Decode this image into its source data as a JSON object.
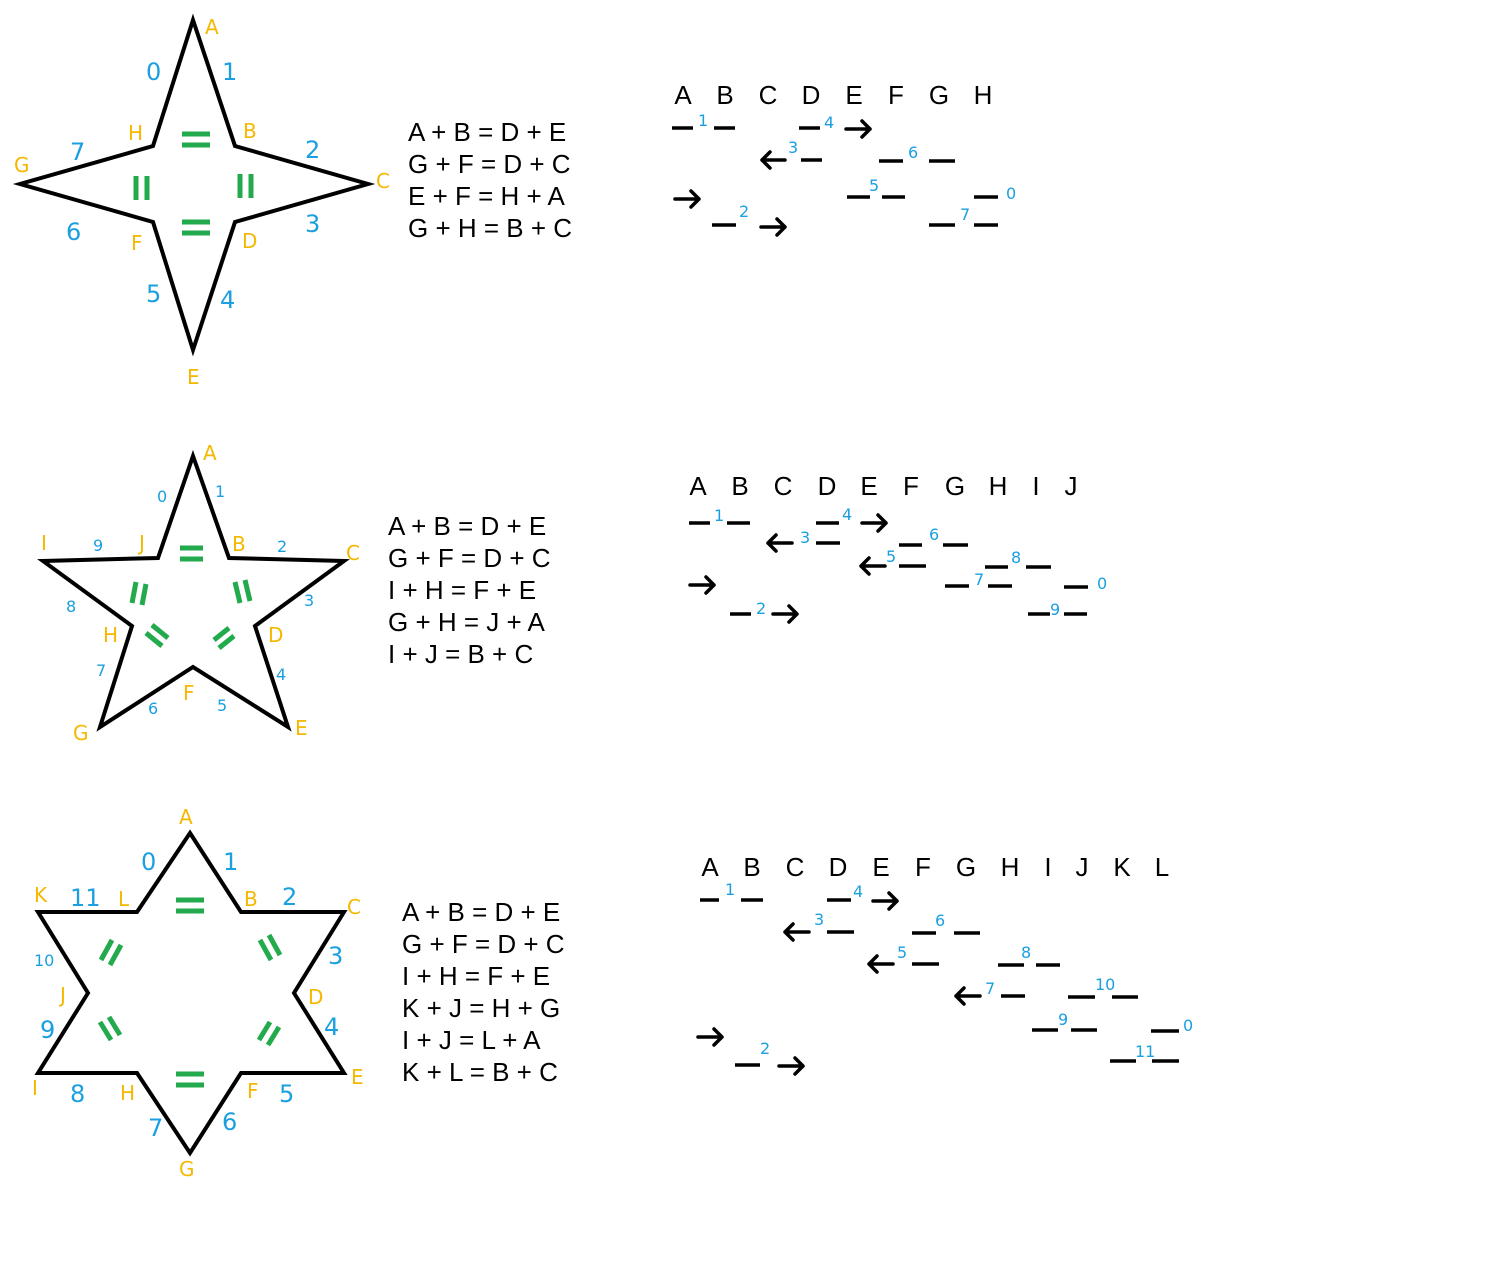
{
  "diagrams": [
    {
      "star": {
        "vertices": [
          "A",
          "B",
          "C",
          "D",
          "E",
          "F",
          "G",
          "H"
        ],
        "edge_numbers": [
          "1",
          "2",
          "3",
          "4",
          "5",
          "6",
          "7",
          "0"
        ]
      },
      "equations": [
        "A + B = D + E",
        "G + F = D + C",
        "E + F = H + A",
        "G + H = B + C"
      ],
      "header": [
        "A",
        "B",
        "C",
        "D",
        "E",
        "F",
        "G",
        "H"
      ],
      "sequence_labels": [
        "1",
        "4",
        "3",
        "6",
        "5",
        "0",
        "2",
        "7"
      ]
    },
    {
      "star": {
        "vertices": [
          "A",
          "B",
          "C",
          "D",
          "E",
          "F",
          "G",
          "H",
          "I",
          "J"
        ],
        "edge_numbers": [
          "1",
          "2",
          "3",
          "4",
          "5",
          "6",
          "7",
          "8",
          "9",
          "0"
        ]
      },
      "equations": [
        "A + B = D + E",
        "G + F = D + C",
        "I + H = F + E",
        "G + H = J + A",
        "I + J = B + C"
      ],
      "header": [
        "A",
        "B",
        "C",
        "D",
        "E",
        "F",
        "G",
        "H",
        "I",
        "J"
      ],
      "sequence_labels": [
        "1",
        "4",
        "3",
        "6",
        "5",
        "8",
        "7",
        "0",
        "2",
        "9"
      ]
    },
    {
      "star": {
        "vertices": [
          "A",
          "B",
          "C",
          "D",
          "E",
          "F",
          "G",
          "H",
          "I",
          "J",
          "K",
          "L"
        ],
        "edge_numbers": [
          "1",
          "2",
          "3",
          "4",
          "5",
          "6",
          "7",
          "8",
          "9",
          "10",
          "11",
          "0"
        ]
      },
      "equations": [
        "A + B = D + E",
        "G + F = D + C",
        "I + H = F + E",
        "K + J = H + G",
        "I + J = L + A",
        "K + L = B + C"
      ],
      "header": [
        "A",
        "B",
        "C",
        "D",
        "E",
        "F",
        "G",
        "H",
        "I",
        "J",
        "K",
        "L"
      ],
      "sequence_labels": [
        "1",
        "4",
        "3",
        "6",
        "5",
        "8",
        "7",
        "10",
        "9",
        "0",
        "2",
        "11"
      ]
    }
  ],
  "colors": {
    "vertex_label": "#f5b800",
    "edge_number": "#1a9fe0",
    "equal_sign": "#22aa4c",
    "outline": "#000000"
  }
}
